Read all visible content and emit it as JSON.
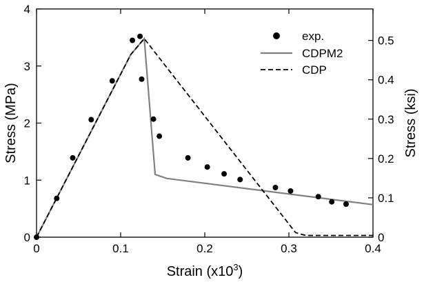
{
  "chart_data": {
    "type": "line",
    "xlabel": "Strain (x10",
    "xlabel_sup": "3",
    "xlabel_suffix": ")",
    "ylabel_left": "Stress (MPa)",
    "ylabel_right": "Stress (ksi)",
    "xlim": [
      0,
      0.4
    ],
    "ylim_left": [
      0,
      4
    ],
    "ylim_right": [
      0,
      0.58
    ],
    "x_ticks": [
      "0",
      "0.1",
      "0.2",
      "0.3",
      "0.4"
    ],
    "x_tick_values": [
      0,
      0.1,
      0.2,
      0.3,
      0.4
    ],
    "y_left_ticks": [
      "0",
      "1",
      "2",
      "3",
      "4"
    ],
    "y_left_tick_values": [
      0,
      1,
      2,
      3,
      4
    ],
    "y_right_ticks": [
      "0",
      "0.1",
      "0.2",
      "0.3",
      "0.4",
      "0.5"
    ],
    "y_right_tick_values": [
      0,
      0.1,
      0.2,
      0.3,
      0.4,
      0.5
    ],
    "grid": false,
    "legend_position": "top-right",
    "legend": [
      "exp.",
      "CDPM2",
      "CDP"
    ],
    "series": [
      {
        "name": "exp.",
        "style": "markers",
        "color": "#000000",
        "x": [
          0.0,
          0.024,
          0.043,
          0.065,
          0.09,
          0.114,
          0.123,
          0.125,
          0.139,
          0.146,
          0.18,
          0.203,
          0.223,
          0.242,
          0.284,
          0.302,
          0.335,
          0.351,
          0.368
        ],
        "y": [
          0.0,
          0.68,
          1.39,
          2.06,
          2.74,
          3.45,
          3.52,
          2.77,
          2.07,
          1.77,
          1.39,
          1.23,
          1.11,
          1.01,
          0.87,
          0.81,
          0.71,
          0.62,
          0.58
        ]
      },
      {
        "name": "CDPM2",
        "style": "solid",
        "color": "#808080",
        "x": [
          0,
          0.112,
          0.128,
          0.141,
          0.155,
          0.4
        ],
        "y": [
          0,
          3.2,
          3.48,
          1.1,
          1.03,
          0.57
        ]
      },
      {
        "name": "CDP",
        "style": "dashed",
        "color": "#000000",
        "x": [
          0,
          0.112,
          0.128,
          0.308,
          0.32,
          0.4
        ],
        "y": [
          0,
          3.2,
          3.48,
          0.08,
          0.03,
          0.03
        ]
      }
    ]
  }
}
